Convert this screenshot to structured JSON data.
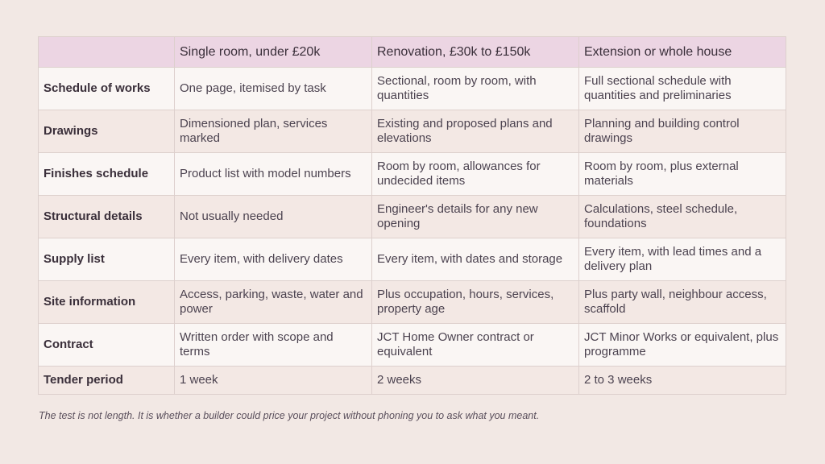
{
  "table": {
    "headers": [
      "",
      "Single room, under £20k",
      "Renovation, £30k to £150k",
      "Extension or whole house"
    ],
    "rows": [
      {
        "label": "Schedule of works",
        "cells": [
          "One page, itemised by task",
          "Sectional, room by room, with quantities",
          "Full sectional schedule with quantities and preliminaries"
        ]
      },
      {
        "label": "Drawings",
        "cells": [
          "Dimensioned plan, services marked",
          "Existing and proposed plans and elevations",
          "Planning and building control drawings"
        ]
      },
      {
        "label": "Finishes schedule",
        "cells": [
          "Product list with model numbers",
          "Room by room, allowances for undecided items",
          "Room by room, plus external materials"
        ]
      },
      {
        "label": "Structural details",
        "cells": [
          "Not usually needed",
          "Engineer's details for any new opening",
          "Calculations, steel schedule, foundations"
        ]
      },
      {
        "label": "Supply list",
        "cells": [
          "Every item, with delivery dates",
          "Every item, with dates and storage",
          "Every item, with lead times and a delivery plan"
        ]
      },
      {
        "label": "Site information",
        "cells": [
          "Access, parking, waste, water and power",
          "Plus occupation, hours, services, property age",
          "Plus party wall, neighbour access, scaffold"
        ]
      },
      {
        "label": "Contract",
        "cells": [
          "Written order with scope and terms",
          "JCT Home Owner contract or equivalent",
          "JCT Minor Works or equivalent, plus programme"
        ]
      },
      {
        "label": "Tender period",
        "cells": [
          "1 week",
          "2 weeks",
          "2 to 3 weeks"
        ]
      }
    ]
  },
  "caption": "The test is not length. It is whether a builder could price your project without phoning you to ask what you meant.",
  "colors": {
    "background": "#f2e8e4",
    "header_bg": "#ecd5e3",
    "row_light": "#faf6f4",
    "row_dark": "#f3e8e4",
    "border": "#ddd0cd",
    "text": "#3a2f3a"
  }
}
